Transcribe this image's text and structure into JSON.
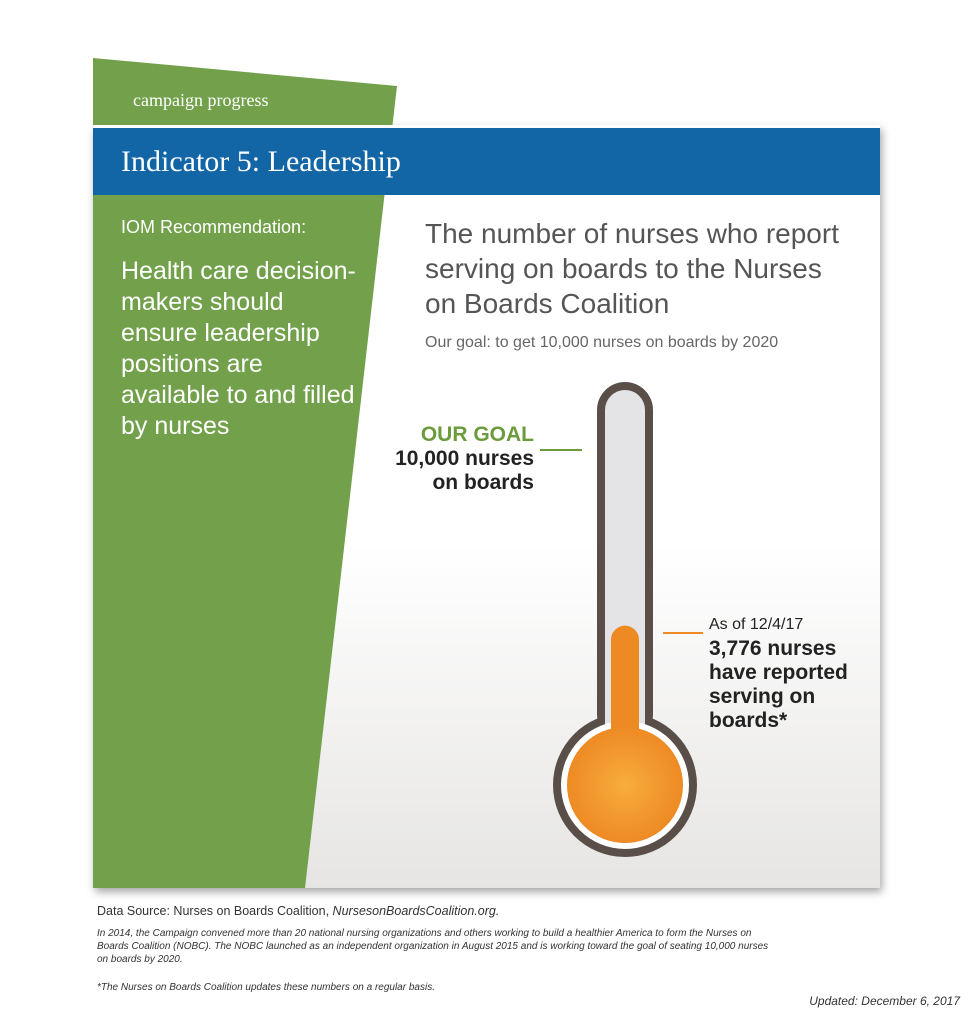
{
  "header": {
    "tag": "campaign progress",
    "title": "Indicator 5: Leadership"
  },
  "sidebar": {
    "label": "IOM Recommendation:",
    "recommendation": "Health care decision-makers should ensure leadership positions are available to and filled by nurses"
  },
  "main": {
    "headline": "The number of nurses who report serving on boards to the Nurses on Boards Coalition",
    "subhead": "Our goal: to get 10,000 nurses on boards by 2020"
  },
  "chart_data": {
    "type": "thermometer",
    "goal": 10000,
    "value": 3776,
    "goal_label": {
      "title": "OUR GOAL",
      "line1": "10,000 nurses",
      "line2": "on boards"
    },
    "value_label": {
      "date": "As of 12/4/17",
      "text": "3,776 nurses have reported serving on boards*"
    },
    "colors": {
      "fill": "#ee8a24",
      "bulb_center": "#f7ad3c",
      "tube": "#e4e4e6",
      "outline": "#5a4e48",
      "goal": "#6c9b3c",
      "value": "#ee8a24"
    }
  },
  "colors": {
    "green": "#72a04b",
    "blue": "#1366a6"
  },
  "footer": {
    "source_prefix": "Data Source: Nurses on Boards Coalition, ",
    "source_link": "NursesonBoardsCoalition.org.",
    "note": "In 2014, the Campaign convened more than 20 national nursing organizations and others working to build a healthier America to form the Nurses on Boards Coalition (NOBC). The NOBC launched as an independent organization in August 2015 and is working toward the goal of seating 10,000 nurses on boards by 2020.",
    "footnote": "*The Nurses on Boards Coalition updates these numbers on a regular basis.",
    "updated": "Updated: December 6, 2017"
  }
}
